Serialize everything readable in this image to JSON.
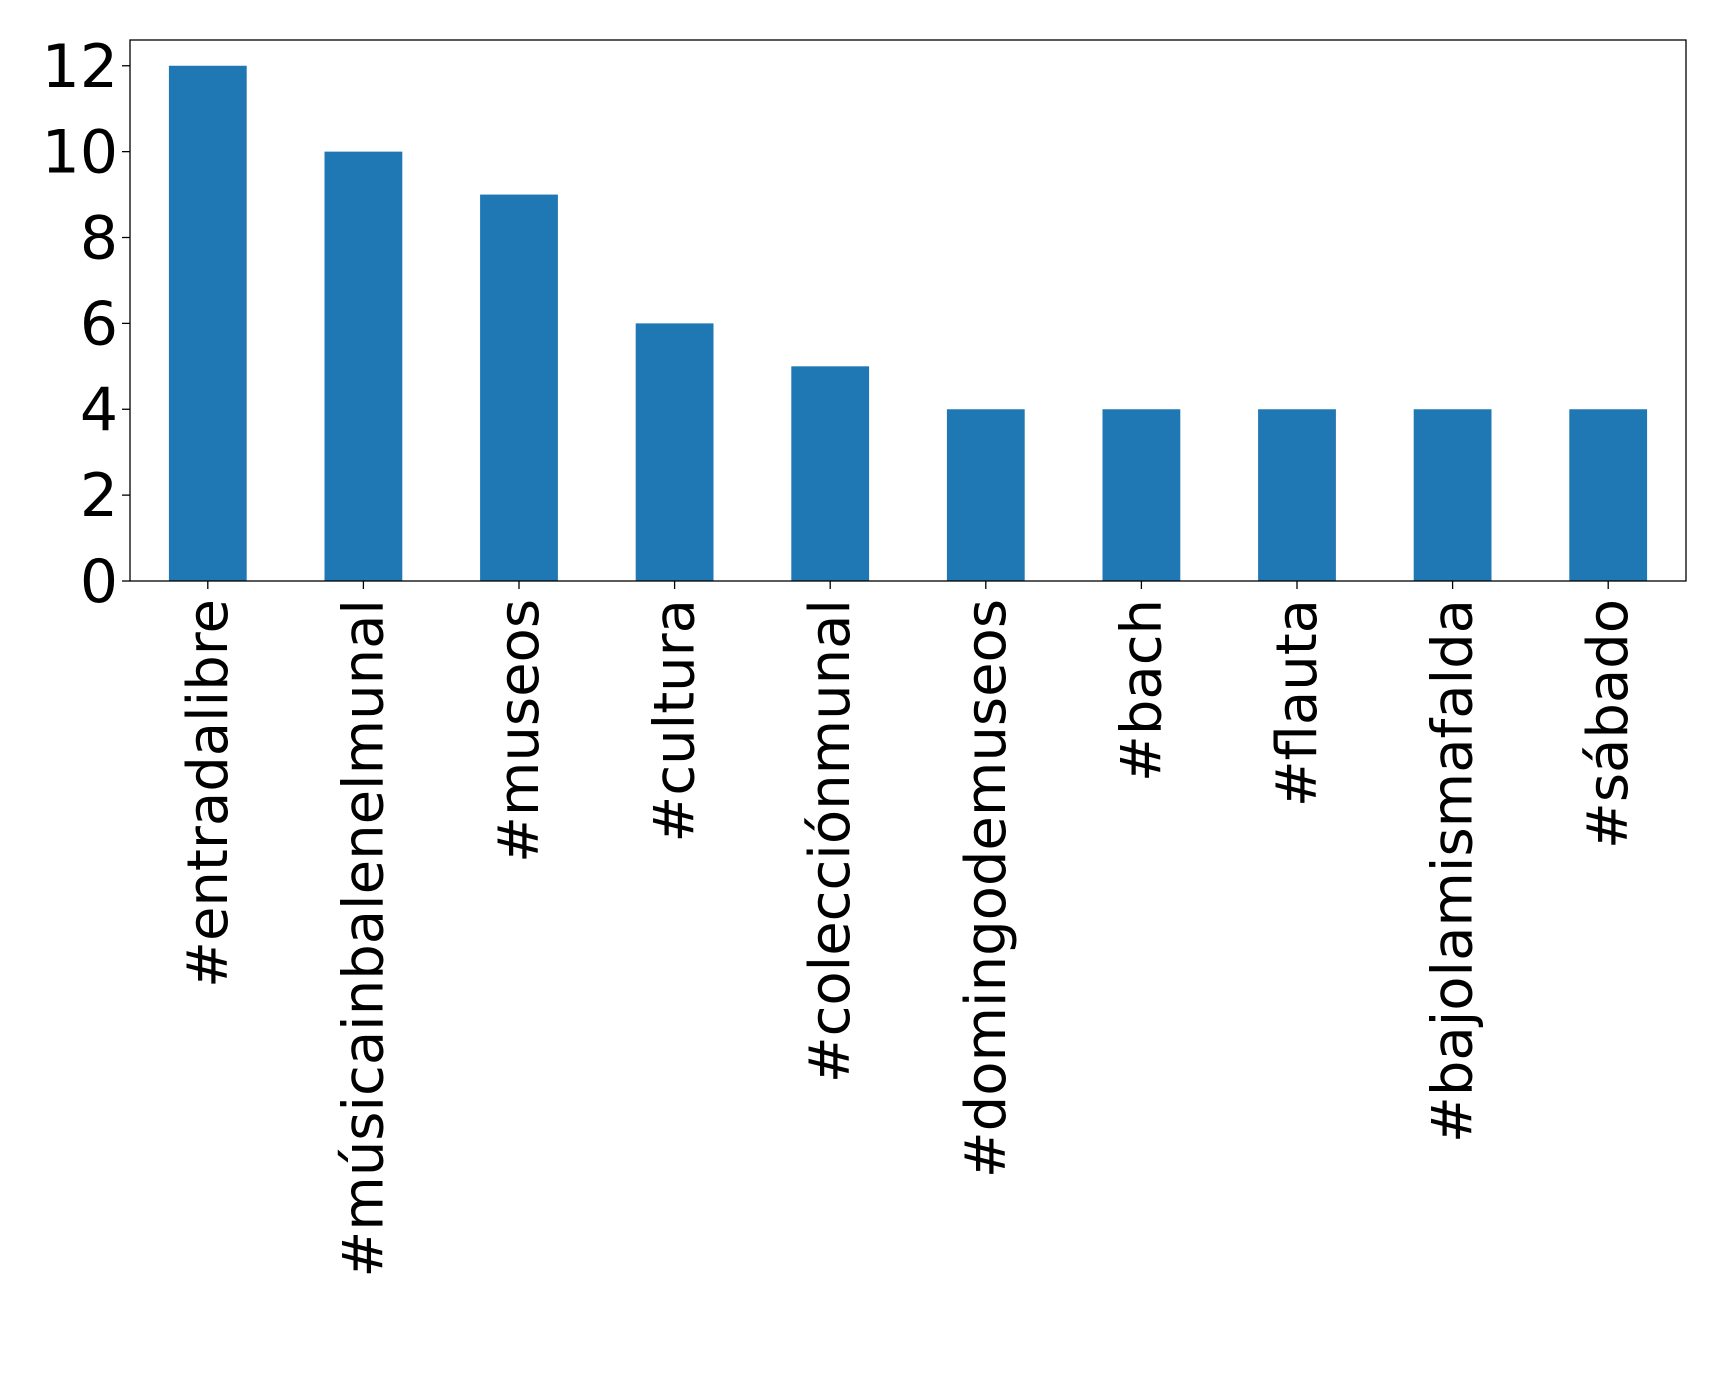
{
  "chart_data": {
    "type": "bar",
    "categories": [
      "#entradalibre",
      "#músicainbalenelmunal",
      "#museos",
      "#cultura",
      "#colecciónmunal",
      "#domingodemuseos",
      "#bach",
      "#flauta",
      "#bajolamismafalda",
      "#sábado"
    ],
    "values": [
      12,
      10,
      9,
      6,
      5,
      4,
      4,
      4,
      4,
      4
    ],
    "title": "",
    "xlabel": "",
    "ylabel": "",
    "ylim": [
      0,
      12.6
    ],
    "yticks": [
      0,
      2,
      4,
      6,
      8,
      10,
      12
    ],
    "grid": false,
    "legend": "none",
    "bar_color": "#1f77b4"
  }
}
